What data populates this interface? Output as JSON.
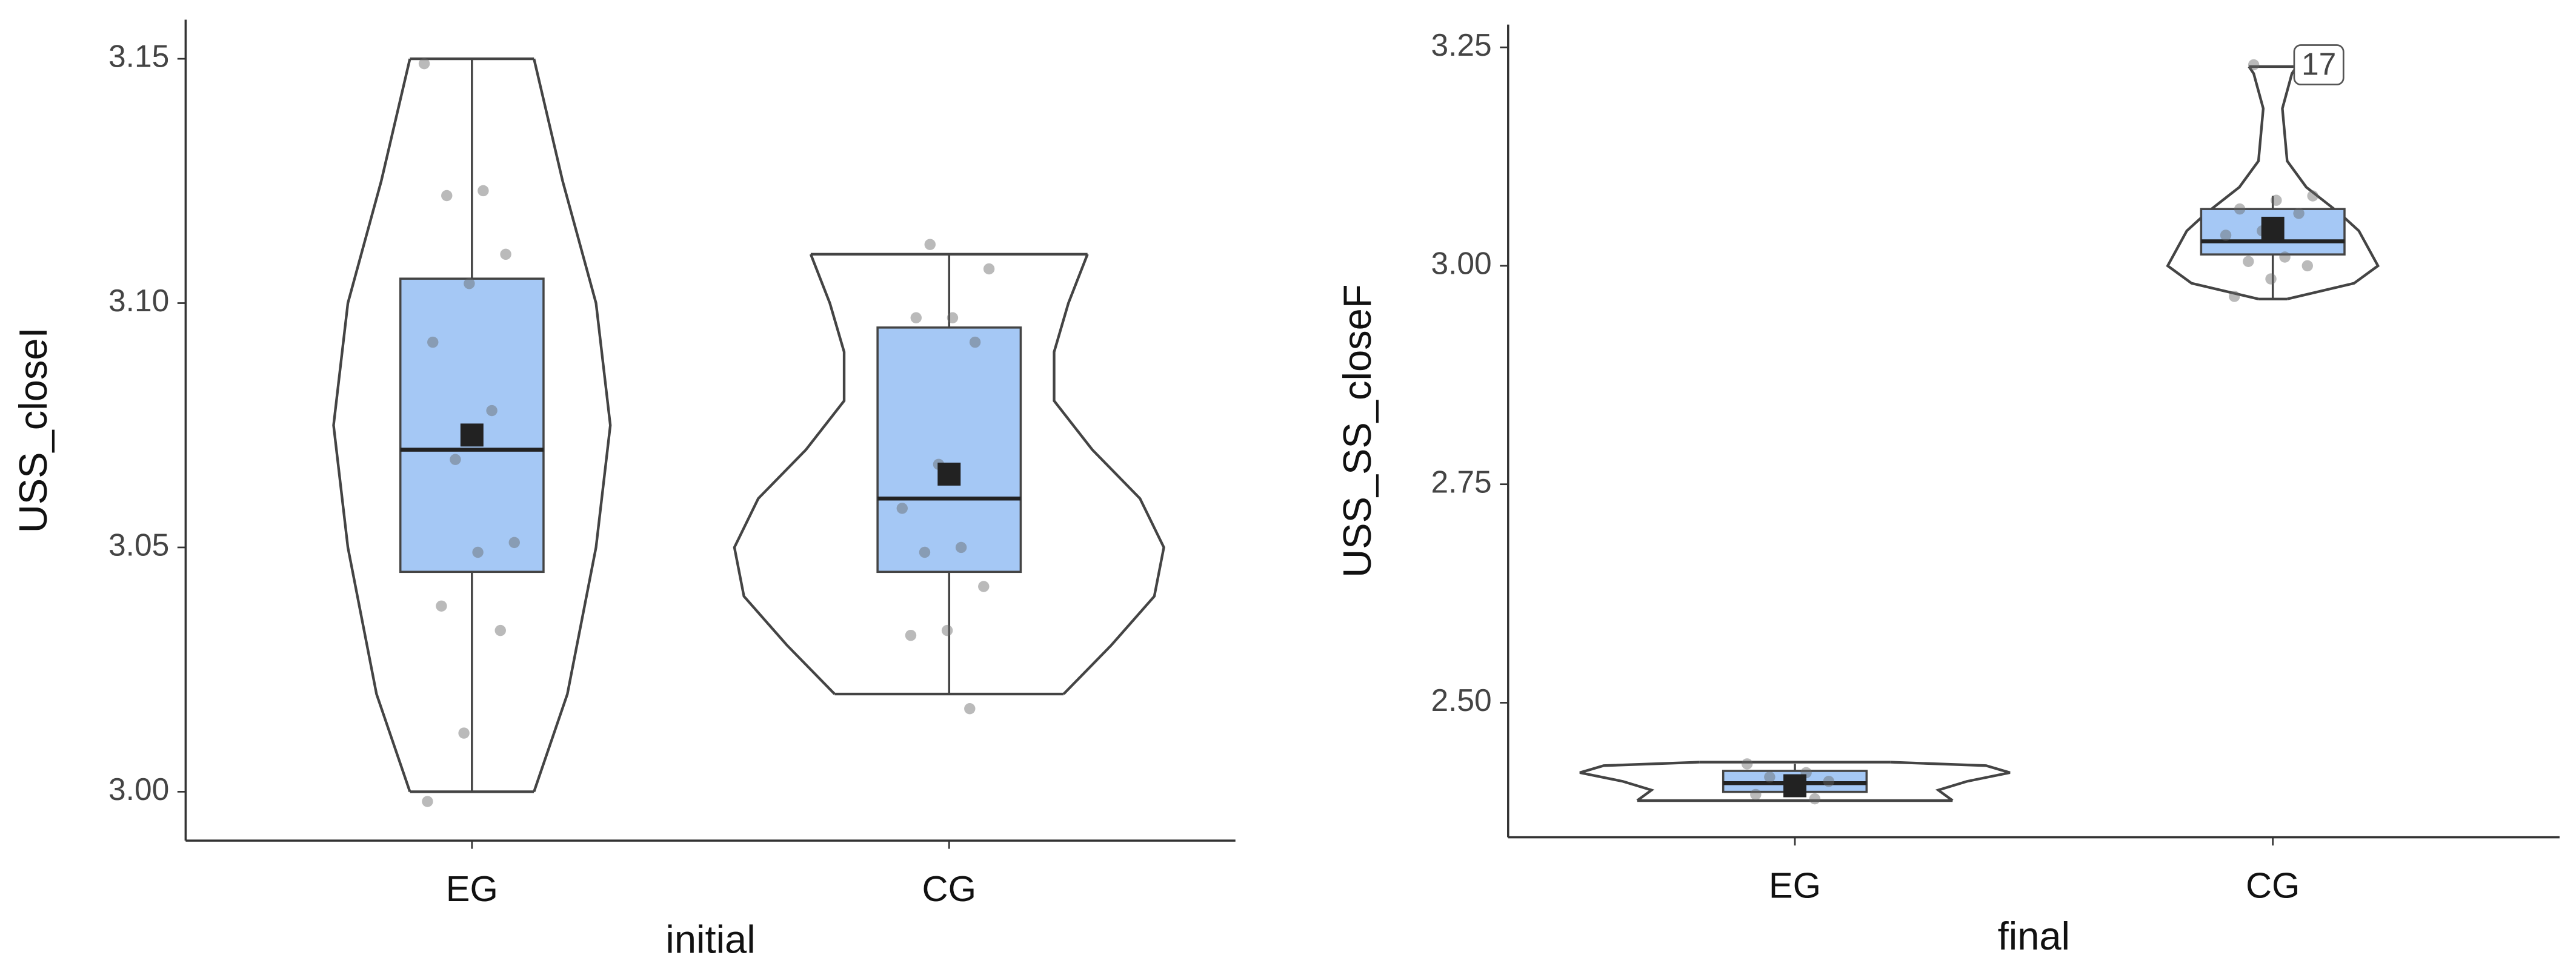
{
  "chart_data": [
    {
      "type": "violin-box",
      "x_label": "initial",
      "y_label": "USS_closeI",
      "categories": [
        "EG",
        "CG"
      ],
      "ylim": [
        2.99,
        3.158
      ],
      "yticks": [
        {
          "value": 3.0,
          "label": "3.00"
        },
        3.05,
        {
          "value": 3.1,
          "label": "3.10"
        },
        3.15
      ],
      "box_color": "#a5c8f5",
      "boxes": [
        {
          "whisker_low": 3.0,
          "q1": 3.045,
          "median": 3.07,
          "q3": 3.105,
          "whisker_high": 3.15,
          "mean": 3.073,
          "points": [
            3.149,
            3.123,
            3.122,
            3.11,
            3.104,
            3.092,
            3.078,
            3.068,
            3.051,
            3.049,
            3.038,
            3.033,
            3.012,
            2.998
          ],
          "violin": {
            "y": [
              3.0,
              3.02,
              3.05,
              3.075,
              3.1,
              3.125,
              3.15
            ],
            "half_width": [
              0.13,
              0.2,
              0.26,
              0.29,
              0.26,
              0.19,
              0.13
            ]
          }
        },
        {
          "whisker_low": 3.02,
          "q1": 3.045,
          "median": 3.06,
          "q3": 3.095,
          "whisker_high": 3.11,
          "mean": 3.065,
          "points": [
            3.112,
            3.107,
            3.097,
            3.097,
            3.092,
            3.067,
            3.058,
            3.05,
            3.049,
            3.042,
            3.033,
            3.032,
            3.017
          ],
          "violin": {
            "y": [
              3.02,
              3.03,
              3.04,
              3.05,
              3.06,
              3.07,
              3.08,
              3.09,
              3.1,
              3.11
            ],
            "half_width": [
              0.24,
              0.34,
              0.43,
              0.45,
              0.4,
              0.3,
              0.22,
              0.22,
              0.25,
              0.29
            ]
          }
        }
      ]
    },
    {
      "type": "violin-box",
      "x_label": "final",
      "y_label": "USS_SS_closeF",
      "categories": [
        "EG",
        "CG"
      ],
      "ylim": [
        2.346,
        3.276
      ],
      "yticks": [
        {
          "value": 2.5,
          "label": "2.50"
        },
        2.75,
        {
          "value": 3.0,
          "label": "3.00"
        },
        3.25
      ],
      "box_color": "#a5c8f5",
      "boxes": [
        {
          "whisker_low": 2.393,
          "q1": 2.398,
          "median": 2.408,
          "q3": 2.422,
          "whisker_high": 2.43,
          "mean": 2.405,
          "points": [
            2.43,
            2.42,
            2.415,
            2.41,
            2.4,
            2.395,
            2.39
          ],
          "violin": {
            "y": [
              2.388,
              2.4,
              2.41,
              2.42,
              2.428,
              2.432
            ],
            "half_width": [
              0.33,
              0.3,
              0.36,
              0.45,
              0.4,
              0.2
            ]
          }
        },
        {
          "whisker_low": 2.962,
          "q1": 3.013,
          "median": 3.028,
          "q3": 3.065,
          "whisker_high": 3.08,
          "mean": 3.043,
          "points": [
            3.23,
            3.08,
            3.075,
            3.065,
            3.06,
            3.04,
            3.035,
            3.01,
            3.005,
            3.0,
            2.985,
            2.965
          ],
          "violin": {
            "y": [
              2.962,
              2.98,
              3.0,
              3.02,
              3.04,
              3.06,
              3.09,
              3.12,
              3.18,
              3.22,
              3.228
            ],
            "half_width": [
              0.03,
              0.17,
              0.22,
              0.2,
              0.18,
              0.14,
              0.07,
              0.03,
              0.02,
              0.04,
              0.05
            ]
          }
        }
      ],
      "annotations": [
        {
          "label": "17",
          "category": "CG",
          "y": 3.23
        }
      ]
    }
  ]
}
